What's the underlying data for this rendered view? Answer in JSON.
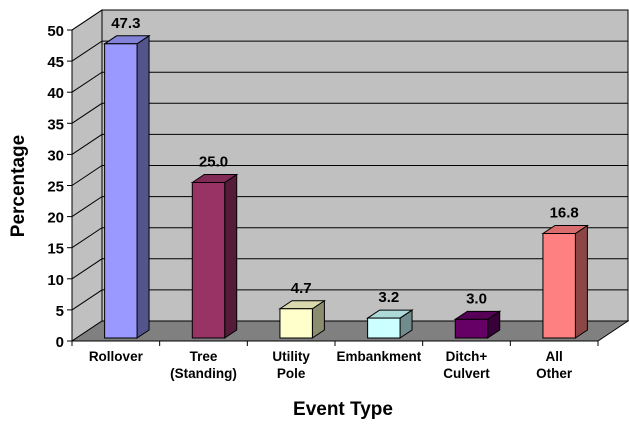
{
  "chart_data": {
    "type": "bar",
    "style": "3d",
    "title": "",
    "xlabel": "Event Type",
    "ylabel": "Percentage",
    "ylim": [
      0,
      50
    ],
    "ytick_step": 5,
    "grid": true,
    "legend": "none",
    "categories": [
      [
        "Rollover"
      ],
      [
        "Tree",
        "(Standing)"
      ],
      [
        "Utility",
        "Pole"
      ],
      [
        "Embankment"
      ],
      [
        "Ditch+",
        "Culvert"
      ],
      [
        "All",
        "Other"
      ]
    ],
    "values": [
      47.3,
      25.0,
      4.7,
      3.2,
      3.0,
      16.8
    ],
    "value_labels": [
      "47.3",
      "25.0",
      "4.7",
      "3.2",
      "3.0",
      "16.8"
    ],
    "bar_colors": [
      "#9999ff",
      "#993366",
      "#ffffcc",
      "#ccffff",
      "#660066",
      "#ff8080"
    ],
    "wall_color": "#c0c0c0",
    "floor_color": "#808080"
  }
}
